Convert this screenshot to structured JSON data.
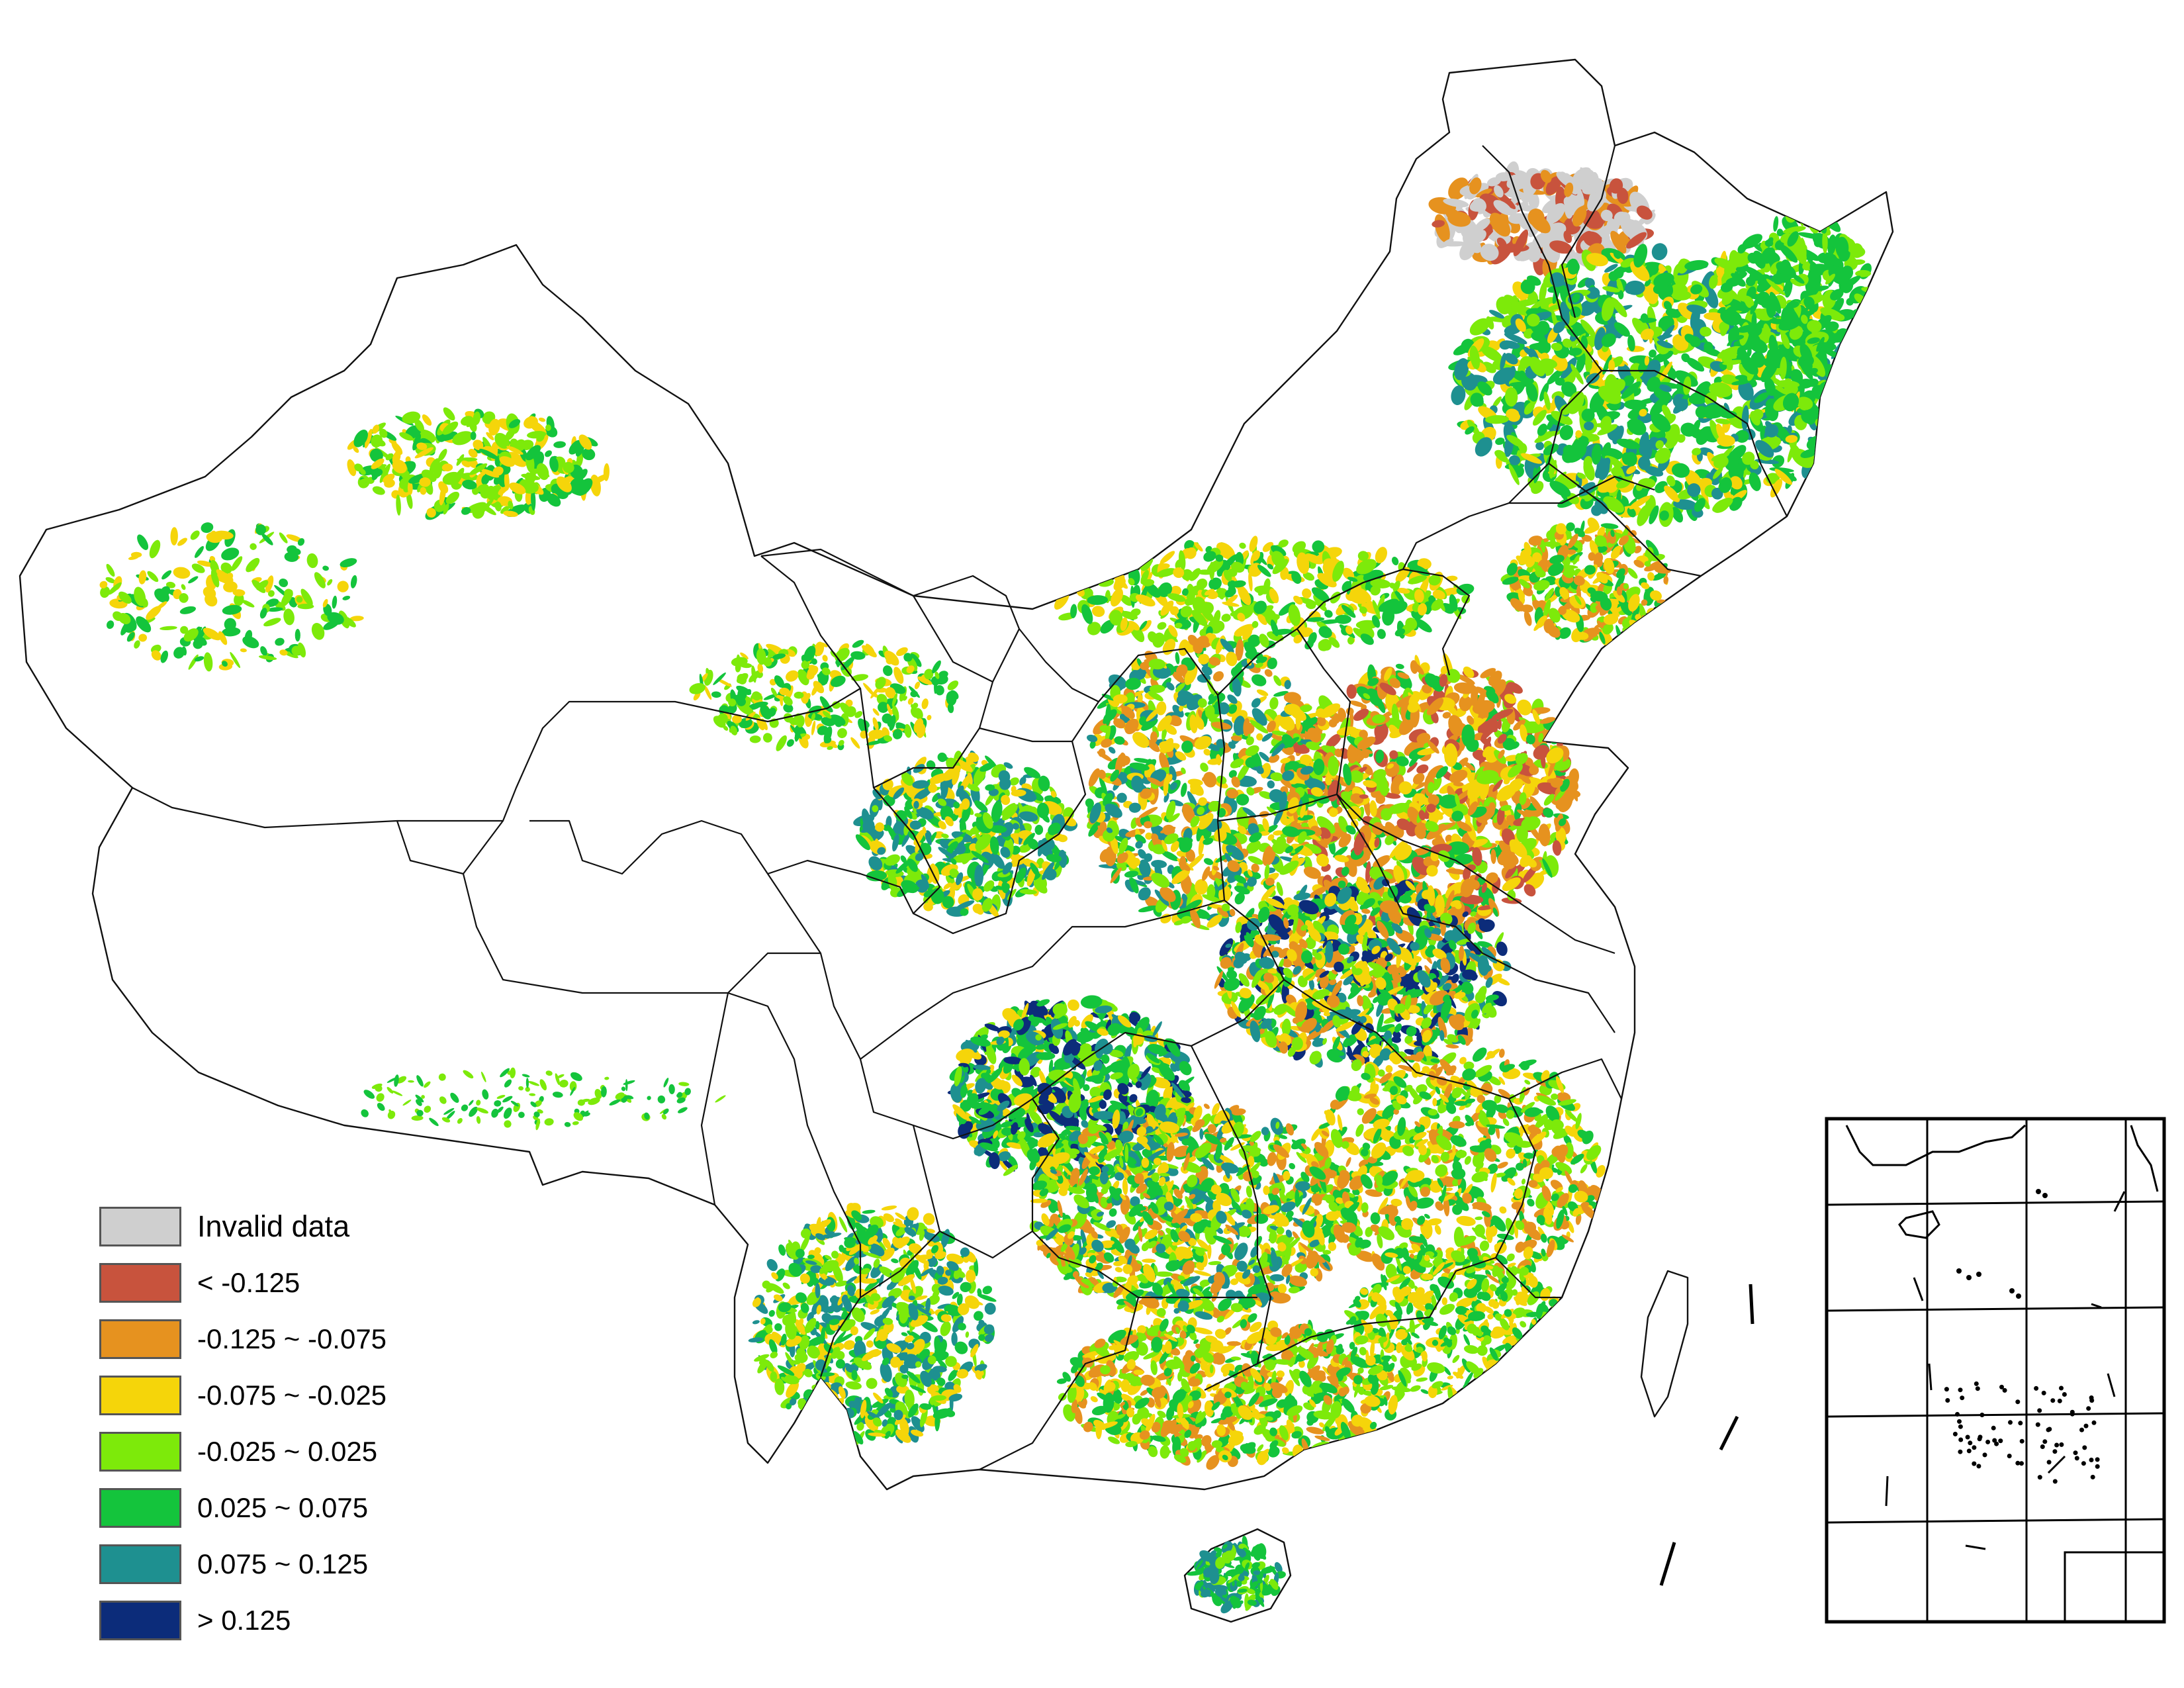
{
  "legend": {
    "items": [
      {
        "label": "Invalid data",
        "color": "#cfcfcf"
      },
      {
        "label": "< -0.125",
        "color": "#c8533d"
      },
      {
        "label": "-0.125 ~ -0.075",
        "color": "#e6921f"
      },
      {
        "label": "-0.075 ~ -0.025",
        "color": "#f5d50a"
      },
      {
        "label": "-0.025 ~ 0.025",
        "color": "#7dea0a"
      },
      {
        "label": "0.025 ~ 0.075",
        "color": "#14c43c"
      },
      {
        "label": "0.075 ~ 0.125",
        "color": "#1e9090"
      },
      {
        "label": "> 0.125",
        "color": "#0c2c7a"
      }
    ]
  },
  "inset": {
    "description_name": "south-china-sea-inset"
  }
}
